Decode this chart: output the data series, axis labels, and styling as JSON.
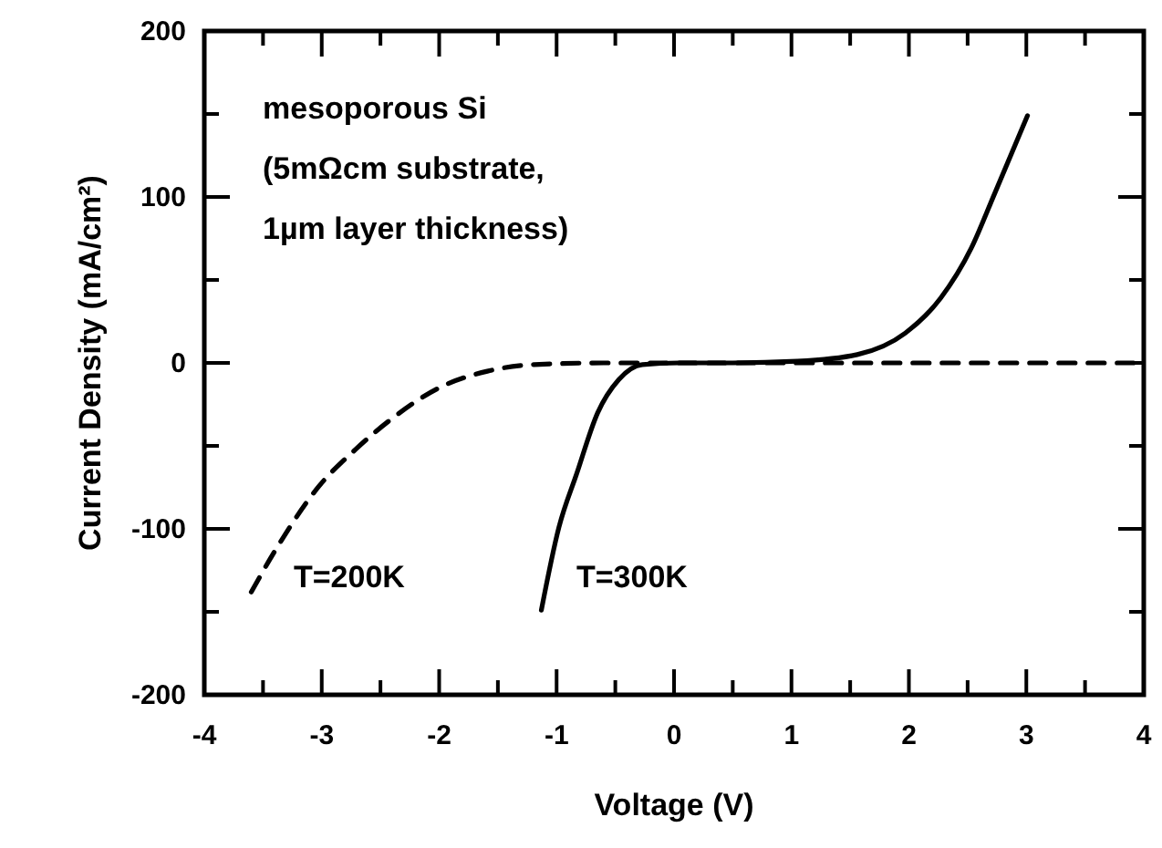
{
  "chart_data": {
    "type": "line",
    "xlabel": "Voltage (V)",
    "ylabel": "Current Density (mA/cm²)",
    "xlim": [
      -4,
      4
    ],
    "ylim": [
      -200,
      200
    ],
    "xticks": [
      -4,
      {
        "value": -3.5,
        "label": null
      },
      -3,
      {
        "value": -2.5,
        "label": null
      },
      -2,
      {
        "value": -1.5,
        "label": null
      },
      -1,
      {
        "value": -0.5,
        "label": null
      },
      0,
      {
        "value": 0.5,
        "label": null
      },
      1,
      {
        "value": 1.5,
        "label": null
      },
      2,
      {
        "value": 2.5,
        "label": null
      },
      3,
      {
        "value": 3.5,
        "label": null
      },
      4
    ],
    "yticks": [
      -200,
      {
        "value": -150,
        "label": null
      },
      -100,
      {
        "value": -50,
        "label": null
      },
      0,
      {
        "value": 50,
        "label": null
      },
      100,
      {
        "value": 150,
        "label": null
      },
      200
    ],
    "grid": false,
    "marker": "none",
    "series": [
      {
        "color": "#000000",
        "line_style": "solid",
        "x": [
          -1.13,
          -0.98,
          -0.83,
          -0.65,
          -0.47,
          -0.27,
          0.04,
          0.5,
          1.05,
          1.56,
          1.97,
          2.27,
          2.53,
          2.73,
          3.01
        ],
        "values": [
          -149,
          -99,
          -67,
          -30,
          -10,
          -1,
          0,
          0,
          1,
          5,
          18,
          39,
          69,
          102,
          149
        ]
      },
      {
        "color": "#000000",
        "line_style": "dashed",
        "x": [
          -3.6,
          -3.37,
          -3.02,
          -2.71,
          -2.41,
          -2.0,
          -1.59,
          -1.19,
          -0.6,
          0,
          1,
          2,
          3,
          4
        ],
        "values": [
          -138,
          -110,
          -74,
          -52,
          -34,
          -15,
          -5,
          -1,
          0,
          0,
          0,
          0,
          0,
          0
        ]
      }
    ],
    "annotations": [
      "mesoporous Si\n(5mΩcm substrate,\n1µm layer thickness)",
      "T=200K",
      "T=300K"
    ]
  }
}
